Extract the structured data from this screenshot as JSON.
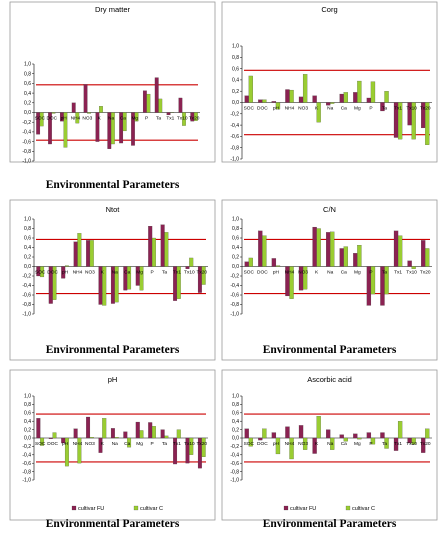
{
  "colors": {
    "series1": "#8b2252",
    "series2": "#9acd32",
    "threshold": "#cc0000",
    "border": "#9a9a9a"
  },
  "chart_data": [
    {
      "type": "bar",
      "title": "Dry matter",
      "xlabel": "Environmental Parameters",
      "ylim": [
        -1,
        1
      ],
      "yticks": [
        "1,0",
        "0,8",
        "0,6",
        "0,4",
        "0,2",
        "0,0",
        "-0,2",
        "-0,4",
        "-0,6",
        "-0,8",
        "-1,0"
      ],
      "thresholds": [
        0.57,
        -0.57
      ],
      "legend": false,
      "categories": [
        "SOC",
        "DOC",
        "pH",
        "NH4",
        "NO3",
        "K",
        "Na",
        "Ca",
        "Mg",
        "P",
        "Ta",
        "Tx1",
        "Tx10",
        "Tx20"
      ],
      "series": [
        {
          "values": [
            -0.45,
            -0.65,
            -0.18,
            0.2,
            0.58,
            -0.6,
            -0.75,
            -0.63,
            -0.68,
            0.45,
            0.72,
            -0.05,
            0.3,
            -0.18
          ]
        },
        {
          "values": [
            -0.28,
            -0.02,
            -0.72,
            -0.22,
            -0.02,
            0.13,
            -0.65,
            -0.38,
            -0.18,
            0.38,
            0.28,
            0.0,
            -0.27,
            -0.17
          ]
        }
      ]
    },
    {
      "type": "bar",
      "title": "Corg",
      "xlabel": "Environmental Parameters",
      "ylim": [
        -1,
        1
      ],
      "yticks": [
        "1,0",
        "0,8",
        "0,6",
        "0,4",
        "0,2",
        "0,0",
        "-0,2",
        "-0,4",
        "-0,6",
        "-0,8",
        "-1,0"
      ],
      "thresholds": [
        0.57,
        -0.57
      ],
      "legend": false,
      "categories": [
        "SOC",
        "DOC",
        "pH",
        "NH4",
        "NO3",
        "K",
        "Na",
        "Ca",
        "Mg",
        "P",
        "Ta",
        "Tx1",
        "Tx10",
        "Tx20"
      ],
      "series": [
        {
          "values": [
            0.12,
            0.05,
            0.02,
            0.23,
            0.1,
            0.12,
            -0.05,
            0.15,
            0.18,
            0.08,
            -0.15,
            -0.62,
            -0.4,
            -0.45
          ]
        },
        {
          "values": [
            0.47,
            0.05,
            -0.12,
            0.22,
            0.5,
            -0.35,
            -0.02,
            0.18,
            0.38,
            0.37,
            0.2,
            -0.65,
            -0.65,
            -0.75
          ]
        }
      ]
    },
    {
      "type": "bar",
      "title": "Ntot",
      "xlabel": "Environmental Parameters",
      "ylim": [
        -1,
        1
      ],
      "yticks": [
        "1,0",
        "0,8",
        "0,6",
        "0,4",
        "0,2",
        "0,0",
        "-0,2",
        "-0,4",
        "-0,6",
        "-0,8",
        "-1,0"
      ],
      "thresholds": [
        0.57,
        -0.57
      ],
      "legend": false,
      "categories": [
        "SOC",
        "DOC",
        "pH",
        "NH4",
        "NO3",
        "K",
        "Na",
        "Ca",
        "Mg",
        "P",
        "Ta",
        "Tx1",
        "Tx10",
        "Tx20"
      ],
      "series": [
        {
          "values": [
            -0.2,
            -0.78,
            -0.25,
            0.52,
            0.55,
            -0.8,
            -0.78,
            -0.5,
            -0.4,
            0.85,
            0.88,
            -0.72,
            -0.05,
            -0.55
          ]
        },
        {
          "values": [
            -0.22,
            -0.7,
            0.02,
            0.7,
            0.55,
            -0.82,
            -0.75,
            -0.48,
            -0.5,
            0.6,
            0.72,
            -0.68,
            0.18,
            -0.38
          ]
        }
      ]
    },
    {
      "type": "bar",
      "title": "C/N",
      "xlabel": "Environmental Parameters",
      "ylim": [
        -1,
        1
      ],
      "yticks": [
        "1,0",
        "0,8",
        "0,6",
        "0,4",
        "0,2",
        "0,0",
        "-0,2",
        "-0,4",
        "-0,6",
        "-0,8",
        "-1,0"
      ],
      "thresholds": [
        0.57,
        -0.57
      ],
      "legend": false,
      "categories": [
        "SOC",
        "DOC",
        "pH",
        "NH4",
        "NO3",
        "K",
        "Na",
        "Ca",
        "Mg",
        "P",
        "Ta",
        "Tx1",
        "Tx10",
        "Tx20"
      ],
      "series": [
        {
          "values": [
            0.1,
            0.75,
            0.17,
            -0.62,
            -0.5,
            0.83,
            0.72,
            0.38,
            0.28,
            -0.82,
            -0.82,
            0.75,
            0.12,
            0.55
          ]
        },
        {
          "values": [
            0.18,
            0.65,
            0.02,
            -0.68,
            -0.48,
            0.8,
            0.73,
            0.42,
            0.45,
            -0.58,
            -0.58,
            0.65,
            -0.05,
            0.38
          ]
        }
      ]
    },
    {
      "type": "bar",
      "title": "pH",
      "xlabel": "Environmental Parameters",
      "ylim": [
        -1,
        1
      ],
      "yticks": [
        "1,0",
        "0,8",
        "0,6",
        "0,4",
        "0,2",
        "0,0",
        "-0,2",
        "-0,4",
        "-0,6",
        "-0,8",
        "-1,0"
      ],
      "thresholds": [
        0.57,
        -0.57
      ],
      "legend": true,
      "categories": [
        "SOC",
        "DOC",
        "pH",
        "NH4",
        "NO3",
        "K",
        "Na",
        "Ca",
        "Mg",
        "P",
        "Ta",
        "Tx1",
        "Tx10",
        "Tx20"
      ],
      "series": [
        {
          "name": "cultivar FU",
          "values": [
            0.47,
            -0.02,
            -0.12,
            0.22,
            0.5,
            -0.35,
            0.23,
            0.15,
            0.38,
            0.37,
            0.2,
            -0.62,
            -0.6,
            -0.72
          ]
        },
        {
          "name": "cultivar C",
          "values": [
            -0.18,
            0.13,
            -0.67,
            -0.6,
            0.02,
            0.47,
            0.02,
            -0.22,
            0.18,
            0.28,
            0.05,
            0.2,
            -0.4,
            -0.45
          ]
        }
      ]
    },
    {
      "type": "bar",
      "title": "Ascorbic acid",
      "xlabel": "Environmental Parameters",
      "ylim": [
        -1,
        1
      ],
      "yticks": [
        "1,0",
        "0,8",
        "0,6",
        "0,4",
        "0,2",
        "0,0",
        "-0,2",
        "-0,4",
        "-0,6",
        "-0,8",
        "-1,0"
      ],
      "thresholds": [
        0.57,
        -0.57
      ],
      "legend": true,
      "categories": [
        "SOC",
        "DOC",
        "pH",
        "NH4",
        "NO3",
        "K",
        "Na",
        "Ca",
        "Mg",
        "P",
        "Ta",
        "Tx1",
        "Tx10",
        "Tx20"
      ],
      "series": [
        {
          "name": "cultivar FU",
          "values": [
            0.22,
            -0.05,
            0.13,
            0.27,
            0.3,
            -0.37,
            0.2,
            0.08,
            0.1,
            0.13,
            0.13,
            -0.3,
            -0.12,
            -0.35
          ]
        },
        {
          "name": "cultivar C",
          "values": [
            -0.2,
            0.22,
            -0.38,
            -0.5,
            -0.28,
            0.52,
            -0.28,
            -0.08,
            -0.03,
            -0.15,
            -0.25,
            0.4,
            -0.15,
            0.22
          ]
        }
      ]
    }
  ]
}
